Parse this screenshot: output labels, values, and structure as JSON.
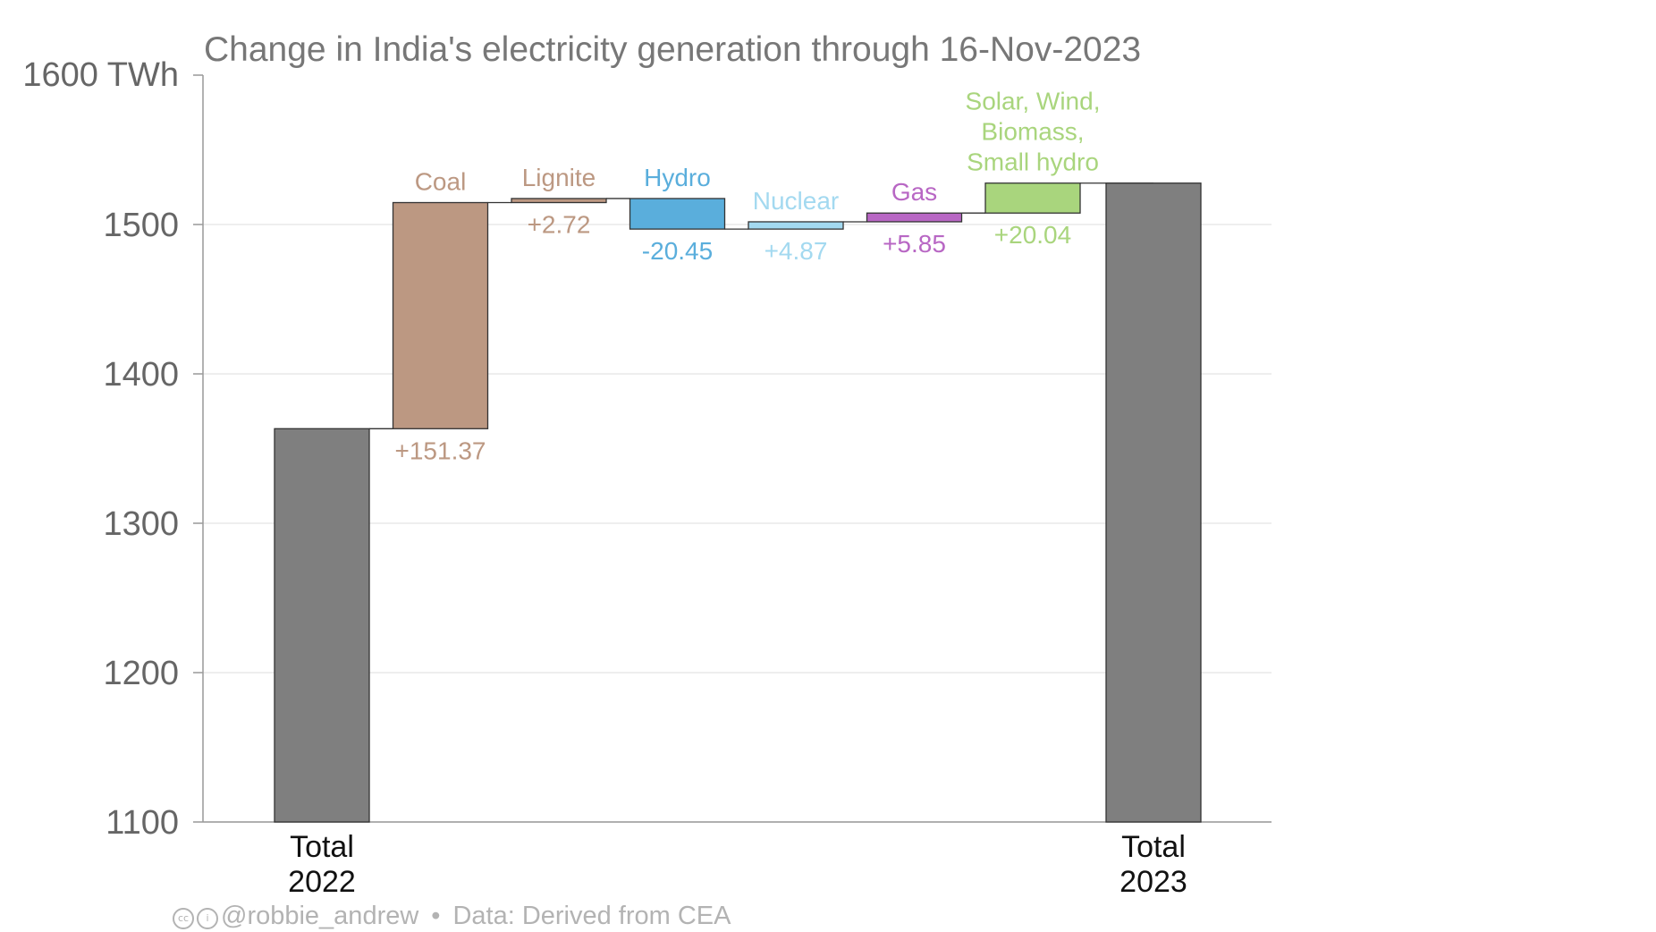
{
  "chart_data": {
    "type": "waterfall",
    "title": "Change in India's electricity generation through 16-Nov-2023",
    "y_unit_label": "1600 TWh",
    "ylim": [
      1100,
      1600
    ],
    "yticks": [
      1100,
      1200,
      1300,
      1400,
      1500
    ],
    "grid": true,
    "start": {
      "label_line1": "Total",
      "label_line2": "2022",
      "value": 1363.3
    },
    "end": {
      "label_line1": "Total",
      "label_line2": "2023",
      "value": 1527.7
    },
    "steps": [
      {
        "name": "Coal",
        "name_lines": [
          "Coal"
        ],
        "delta": 151.37,
        "delta_label": "+151.37",
        "color": "#bc9882"
      },
      {
        "name": "Lignite",
        "name_lines": [
          "Lignite"
        ],
        "delta": 2.72,
        "delta_label": "+2.72",
        "color": "#bc9882"
      },
      {
        "name": "Hydro",
        "name_lines": [
          "Hydro"
        ],
        "delta": -20.45,
        "delta_label": "-20.45",
        "color": "#5aaedc"
      },
      {
        "name": "Nuclear",
        "name_lines": [
          "Nuclear"
        ],
        "delta": 4.87,
        "delta_label": "+4.87",
        "color": "#a3d9f0"
      },
      {
        "name": "Gas",
        "name_lines": [
          "Gas"
        ],
        "delta": 5.85,
        "delta_label": "+5.85",
        "color": "#b867c4"
      },
      {
        "name": "Solar, Wind, Biomass, Small hydro",
        "name_lines": [
          "Solar, Wind,",
          "Biomass,",
          "Small hydro"
        ],
        "delta": 20.04,
        "delta_label": "+20.04",
        "color": "#a9d57d"
      }
    ],
    "total_color": "#7f7f7f"
  },
  "footer": {
    "handle": "@robbie_andrew",
    "source": "Data: Derived from CEA"
  }
}
